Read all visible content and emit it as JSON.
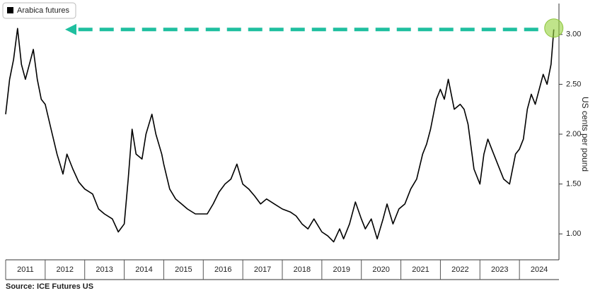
{
  "chart_data": {
    "type": "line",
    "legend": "Arabica futures",
    "y_axis_label": "US cents per pound",
    "source": "Source: ICE Futures US",
    "color": "#000000",
    "x": [
      2011.0,
      2011.1,
      2011.2,
      2011.3,
      2011.4,
      2011.5,
      2011.6,
      2011.7,
      2011.8,
      2011.9,
      2012.0,
      2012.15,
      2012.3,
      2012.45,
      2012.55,
      2012.7,
      2012.85,
      2013.0,
      2013.2,
      2013.35,
      2013.5,
      2013.7,
      2013.85,
      2014.0,
      2014.1,
      2014.2,
      2014.3,
      2014.45,
      2014.55,
      2014.7,
      2014.8,
      2014.95,
      2015.0,
      2015.15,
      2015.3,
      2015.45,
      2015.6,
      2015.8,
      2015.95,
      2016.1,
      2016.25,
      2016.4,
      2016.55,
      2016.7,
      2016.85,
      2017.0,
      2017.15,
      2017.3,
      2017.45,
      2017.6,
      2017.8,
      2018.0,
      2018.2,
      2018.35,
      2018.5,
      2018.65,
      2018.8,
      2019.0,
      2019.15,
      2019.3,
      2019.45,
      2019.55,
      2019.7,
      2019.85,
      2020.0,
      2020.1,
      2020.25,
      2020.4,
      2020.55,
      2020.65,
      2020.8,
      2020.95,
      2021.1,
      2021.25,
      2021.4,
      2021.55,
      2021.65,
      2021.75,
      2021.9,
      2022.0,
      2022.1,
      2022.2,
      2022.35,
      2022.5,
      2022.6,
      2022.7,
      2022.85,
      2023.0,
      2023.1,
      2023.2,
      2023.3,
      2023.45,
      2023.6,
      2023.75,
      2023.9,
      2024.0,
      2024.1,
      2024.2,
      2024.3,
      2024.4,
      2024.5,
      2024.6,
      2024.7,
      2024.8,
      2024.87
    ],
    "values": [
      2.2,
      2.55,
      2.75,
      3.06,
      2.7,
      2.55,
      2.7,
      2.85,
      2.55,
      2.35,
      2.3,
      2.05,
      1.8,
      1.6,
      1.8,
      1.65,
      1.52,
      1.45,
      1.4,
      1.25,
      1.2,
      1.15,
      1.02,
      1.1,
      1.55,
      2.05,
      1.8,
      1.75,
      2.0,
      2.2,
      2.0,
      1.8,
      1.7,
      1.45,
      1.35,
      1.3,
      1.25,
      1.2,
      1.2,
      1.2,
      1.3,
      1.42,
      1.5,
      1.55,
      1.7,
      1.5,
      1.45,
      1.38,
      1.3,
      1.35,
      1.3,
      1.25,
      1.22,
      1.18,
      1.1,
      1.05,
      1.15,
      1.02,
      0.98,
      0.92,
      1.05,
      0.95,
      1.1,
      1.32,
      1.15,
      1.05,
      1.15,
      0.95,
      1.15,
      1.3,
      1.1,
      1.25,
      1.3,
      1.45,
      1.55,
      1.8,
      1.9,
      2.05,
      2.35,
      2.45,
      2.35,
      2.55,
      2.25,
      2.3,
      2.25,
      2.1,
      1.65,
      1.5,
      1.8,
      1.95,
      1.85,
      1.7,
      1.55,
      1.5,
      1.8,
      1.85,
      1.95,
      2.25,
      2.4,
      2.3,
      2.45,
      2.6,
      2.5,
      2.7,
      3.05
    ],
    "xlim": [
      2011,
      2025
    ],
    "xticks": [
      {
        "value": 2011.5,
        "label": "2011"
      },
      {
        "value": 2012.5,
        "label": "2012"
      },
      {
        "value": 2013.5,
        "label": "2013"
      },
      {
        "value": 2014.5,
        "label": "2014"
      },
      {
        "value": 2015.5,
        "label": "2015"
      },
      {
        "value": 2016.5,
        "label": "2016"
      },
      {
        "value": 2017.5,
        "label": "2017"
      },
      {
        "value": 2018.5,
        "label": "2018"
      },
      {
        "value": 2019.5,
        "label": "2019"
      },
      {
        "value": 2020.5,
        "label": "2020"
      },
      {
        "value": 2021.5,
        "label": "2021"
      },
      {
        "value": 2022.5,
        "label": "2022"
      },
      {
        "value": 2023.5,
        "label": "2023"
      },
      {
        "value": 2024.5,
        "label": "2024"
      }
    ],
    "ylim": [
      0.74,
      3.31
    ],
    "yticks": [
      {
        "value": 1,
        "label": "1.00"
      },
      {
        "value": 1.5,
        "label": "1.50"
      },
      {
        "value": 2,
        "label": "2.00"
      },
      {
        "value": 2.5,
        "label": "2.50"
      },
      {
        "value": 3,
        "label": "3.00"
      }
    ],
    "grid": false
  }
}
